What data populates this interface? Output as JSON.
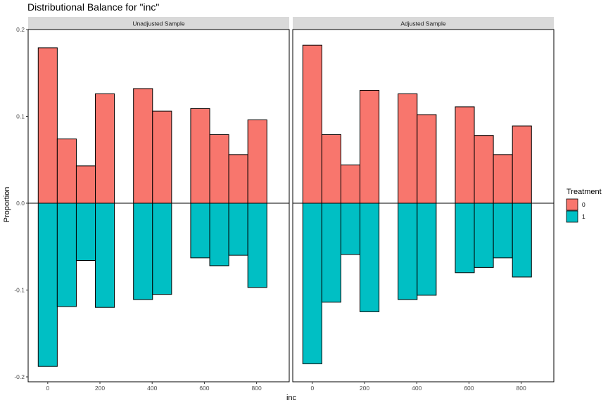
{
  "chart_data": {
    "type": "bar",
    "title": "Distributional Balance for \"inc\"",
    "xlabel": "inc",
    "ylabel": "Proportion",
    "xlim": [
      -75,
      925
    ],
    "ylim": [
      -0.21,
      0.2
    ],
    "x_ticks": [
      0,
      200,
      400,
      600,
      800
    ],
    "x_tick_labels": [
      "0",
      "200",
      "400",
      "600",
      "800"
    ],
    "y_ticks": [
      -0.2,
      -0.1,
      0.0,
      0.1,
      0.2
    ],
    "y_tick_labels": [
      "-0.2",
      "-0.1",
      "0.0",
      "0.1",
      "0.2"
    ],
    "bin_width": 73,
    "grid": false,
    "legend": {
      "title": "Treatment",
      "position": "right",
      "entries": [
        {
          "label": "0",
          "color": "#F8766D"
        },
        {
          "label": "1",
          "color": "#00BFC4"
        }
      ]
    },
    "panels": [
      {
        "strip": "Unadjusted Sample",
        "bin_centers": [
          0,
          73,
          146,
          219,
          365,
          438,
          584,
          657,
          730,
          803
        ],
        "series": [
          {
            "name": "0",
            "color": "#F8766D",
            "values": [
              0.179,
              0.074,
              0.043,
              0.126,
              0.132,
              0.106,
              0.109,
              0.079,
              0.056,
              0.096
            ]
          },
          {
            "name": "1",
            "color": "#00BFC4",
            "values": [
              -0.188,
              -0.119,
              -0.066,
              -0.12,
              -0.111,
              -0.105,
              -0.063,
              -0.072,
              -0.06,
              -0.097
            ]
          }
        ]
      },
      {
        "strip": "Adjusted Sample",
        "bin_centers": [
          0,
          73,
          146,
          219,
          365,
          438,
          584,
          657,
          730,
          803
        ],
        "series": [
          {
            "name": "0",
            "color": "#F8766D",
            "values": [
              0.182,
              0.079,
              0.044,
              0.13,
              0.126,
              0.102,
              0.111,
              0.078,
              0.056,
              0.089
            ]
          },
          {
            "name": "1",
            "color": "#00BFC4",
            "values": [
              -0.185,
              -0.114,
              -0.059,
              -0.125,
              -0.111,
              -0.106,
              -0.08,
              -0.074,
              -0.063,
              -0.085
            ]
          }
        ]
      }
    ]
  }
}
